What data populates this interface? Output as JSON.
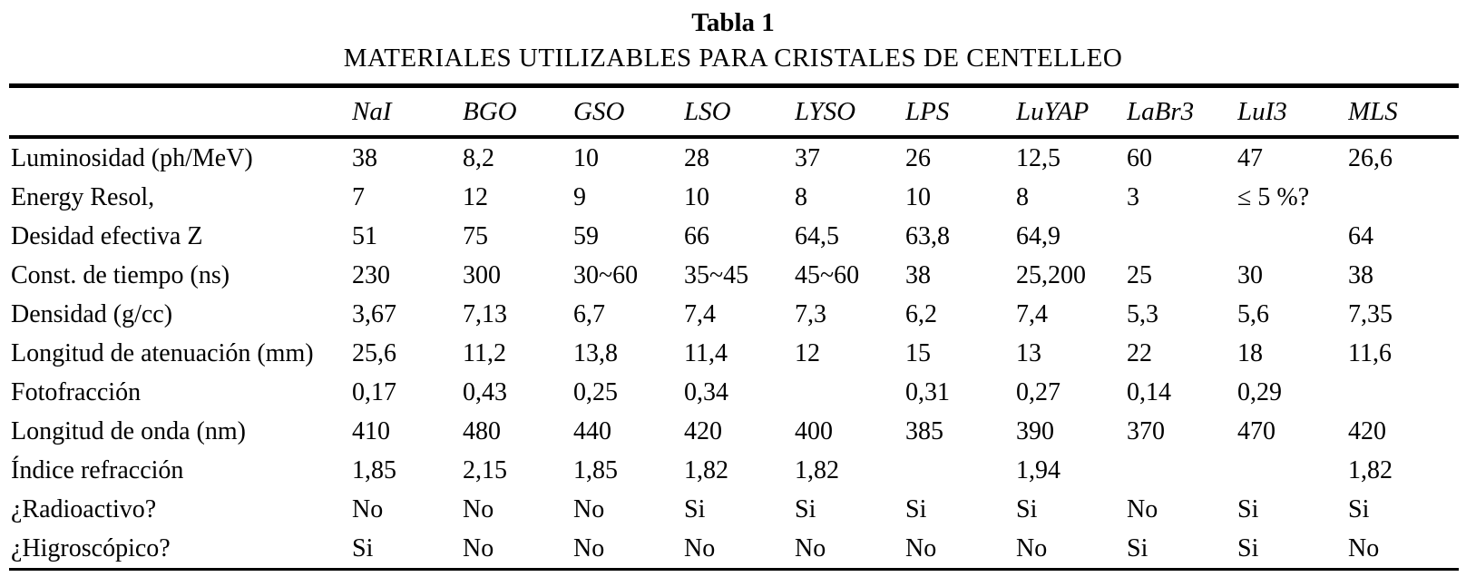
{
  "table": {
    "title": "Tabla 1",
    "subtitle": "MATERIALES UTILIZABLES PARA CRISTALES DE CENTELLEO",
    "columns": [
      "NaI",
      "BGO",
      "GSO",
      "LSO",
      "LYSO",
      "LPS",
      "LuYAP",
      "LaBr3",
      "LuI3",
      "MLS"
    ],
    "rows": [
      {
        "label": "Luminosidad (ph/MeV)",
        "values": [
          "38",
          "8,2",
          "10",
          "28",
          "37",
          "26",
          "12,5",
          "60",
          "47",
          "26,6"
        ]
      },
      {
        "label": "Energy Resol,",
        "values": [
          "7",
          "12",
          "9",
          "10",
          "8",
          "10",
          "8",
          "3",
          "≤ 5 %?",
          ""
        ]
      },
      {
        "label": "Desidad efectiva Z",
        "values": [
          "51",
          "75",
          "59",
          "66",
          "64,5",
          "63,8",
          "64,9",
          "",
          "",
          "64"
        ]
      },
      {
        "label": "Const. de tiempo (ns)",
        "values": [
          "230",
          "300",
          "30~60",
          "35~45",
          "45~60",
          "38",
          "25,200",
          "25",
          "30",
          "38"
        ]
      },
      {
        "label": "Densidad (g/cc)",
        "values": [
          "3,67",
          "7,13",
          "6,7",
          "7,4",
          "7,3",
          "6,2",
          "7,4",
          "5,3",
          "5,6",
          "7,35"
        ]
      },
      {
        "label": "Longitud de atenuación (mm)",
        "values": [
          "25,6",
          "11,2",
          "13,8",
          "11,4",
          "12",
          "15",
          "13",
          "22",
          "18",
          "11,6"
        ]
      },
      {
        "label": "Fotofracción",
        "values": [
          "0,17",
          "0,43",
          "0,25",
          "0,34",
          "",
          "0,31",
          "0,27",
          "0,14",
          "0,29",
          ""
        ]
      },
      {
        "label": "Longitud de onda (nm)",
        "values": [
          "410",
          "480",
          "440",
          "420",
          "400",
          "385",
          "390",
          "370",
          "470",
          "420"
        ]
      },
      {
        "label": "Índice refracción",
        "values": [
          "1,85",
          "2,15",
          "1,85",
          "1,82",
          "1,82",
          "",
          "1,94",
          "",
          "",
          "1,82"
        ]
      },
      {
        "label": "¿Radioactivo?",
        "values": [
          "No",
          "No",
          "No",
          "Si",
          "Si",
          "Si",
          "Si",
          "No",
          "Si",
          "Si"
        ]
      },
      {
        "label": "¿Higroscópico?",
        "values": [
          "Si",
          "No",
          "No",
          "No",
          "No",
          "No",
          "No",
          "Si",
          "Si",
          "No"
        ]
      }
    ],
    "text_color": "#000000",
    "background_color": "#ffffff"
  }
}
